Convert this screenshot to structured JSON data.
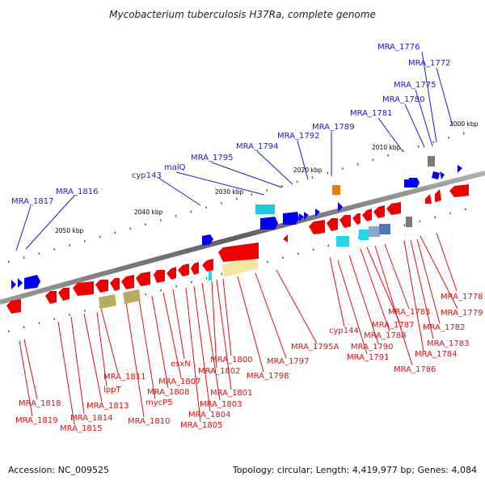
{
  "title": "Mycobacterium tuberculosis H37Ra, complete genome",
  "accession": "Accession: NC_009525",
  "topology": "Topology: circular; Length: 4,419,977 bp; Genes: 4,084",
  "scale_labels": [
    "2000 kbp",
    "2010 kbp",
    "2020 kbp",
    "2030 kbp",
    "2040 kbp",
    "2050 kbp"
  ],
  "upper_genes": [
    "MRA_1776",
    "MRA_1772",
    "MRA_1775",
    "MRA_1780",
    "MRA_1781",
    "MRA_1789",
    "MRA_1792",
    "MRA_1794",
    "MRA_1795",
    "malQ",
    "cyp143",
    "MRA_1816",
    "MRA_1817"
  ],
  "lower_genes": [
    "MRA_1778",
    "MRA_1779",
    "MRA_1782",
    "MRA_1783",
    "MRA_1784",
    "MRA_1785",
    "MRA_1786",
    "MRA_1787",
    "MRA_1788",
    "MRA_1790",
    "MRA_1791",
    "cyp144",
    "MRA_1795A",
    "MRA_1797",
    "MRA_1798",
    "MRA_1800",
    "MRA_1801",
    "MRA_1802",
    "MRA_1803",
    "MRA_1804",
    "MRA_1805",
    "esxN",
    "MRA_1807",
    "MRA_1808",
    "mycP5",
    "MRA_1810",
    "MRA_1811",
    "lppT",
    "MRA_1813",
    "MRA_1814",
    "MRA_1815",
    "MRA_1818",
    "MRA_1819"
  ],
  "colors": {
    "upper_label": "#1a1ad6",
    "lower_label": "#e01010",
    "forward_gene": "#0000ee",
    "reverse_gene": "#ee0000",
    "backbone": "#808080",
    "tick": "#118811"
  }
}
